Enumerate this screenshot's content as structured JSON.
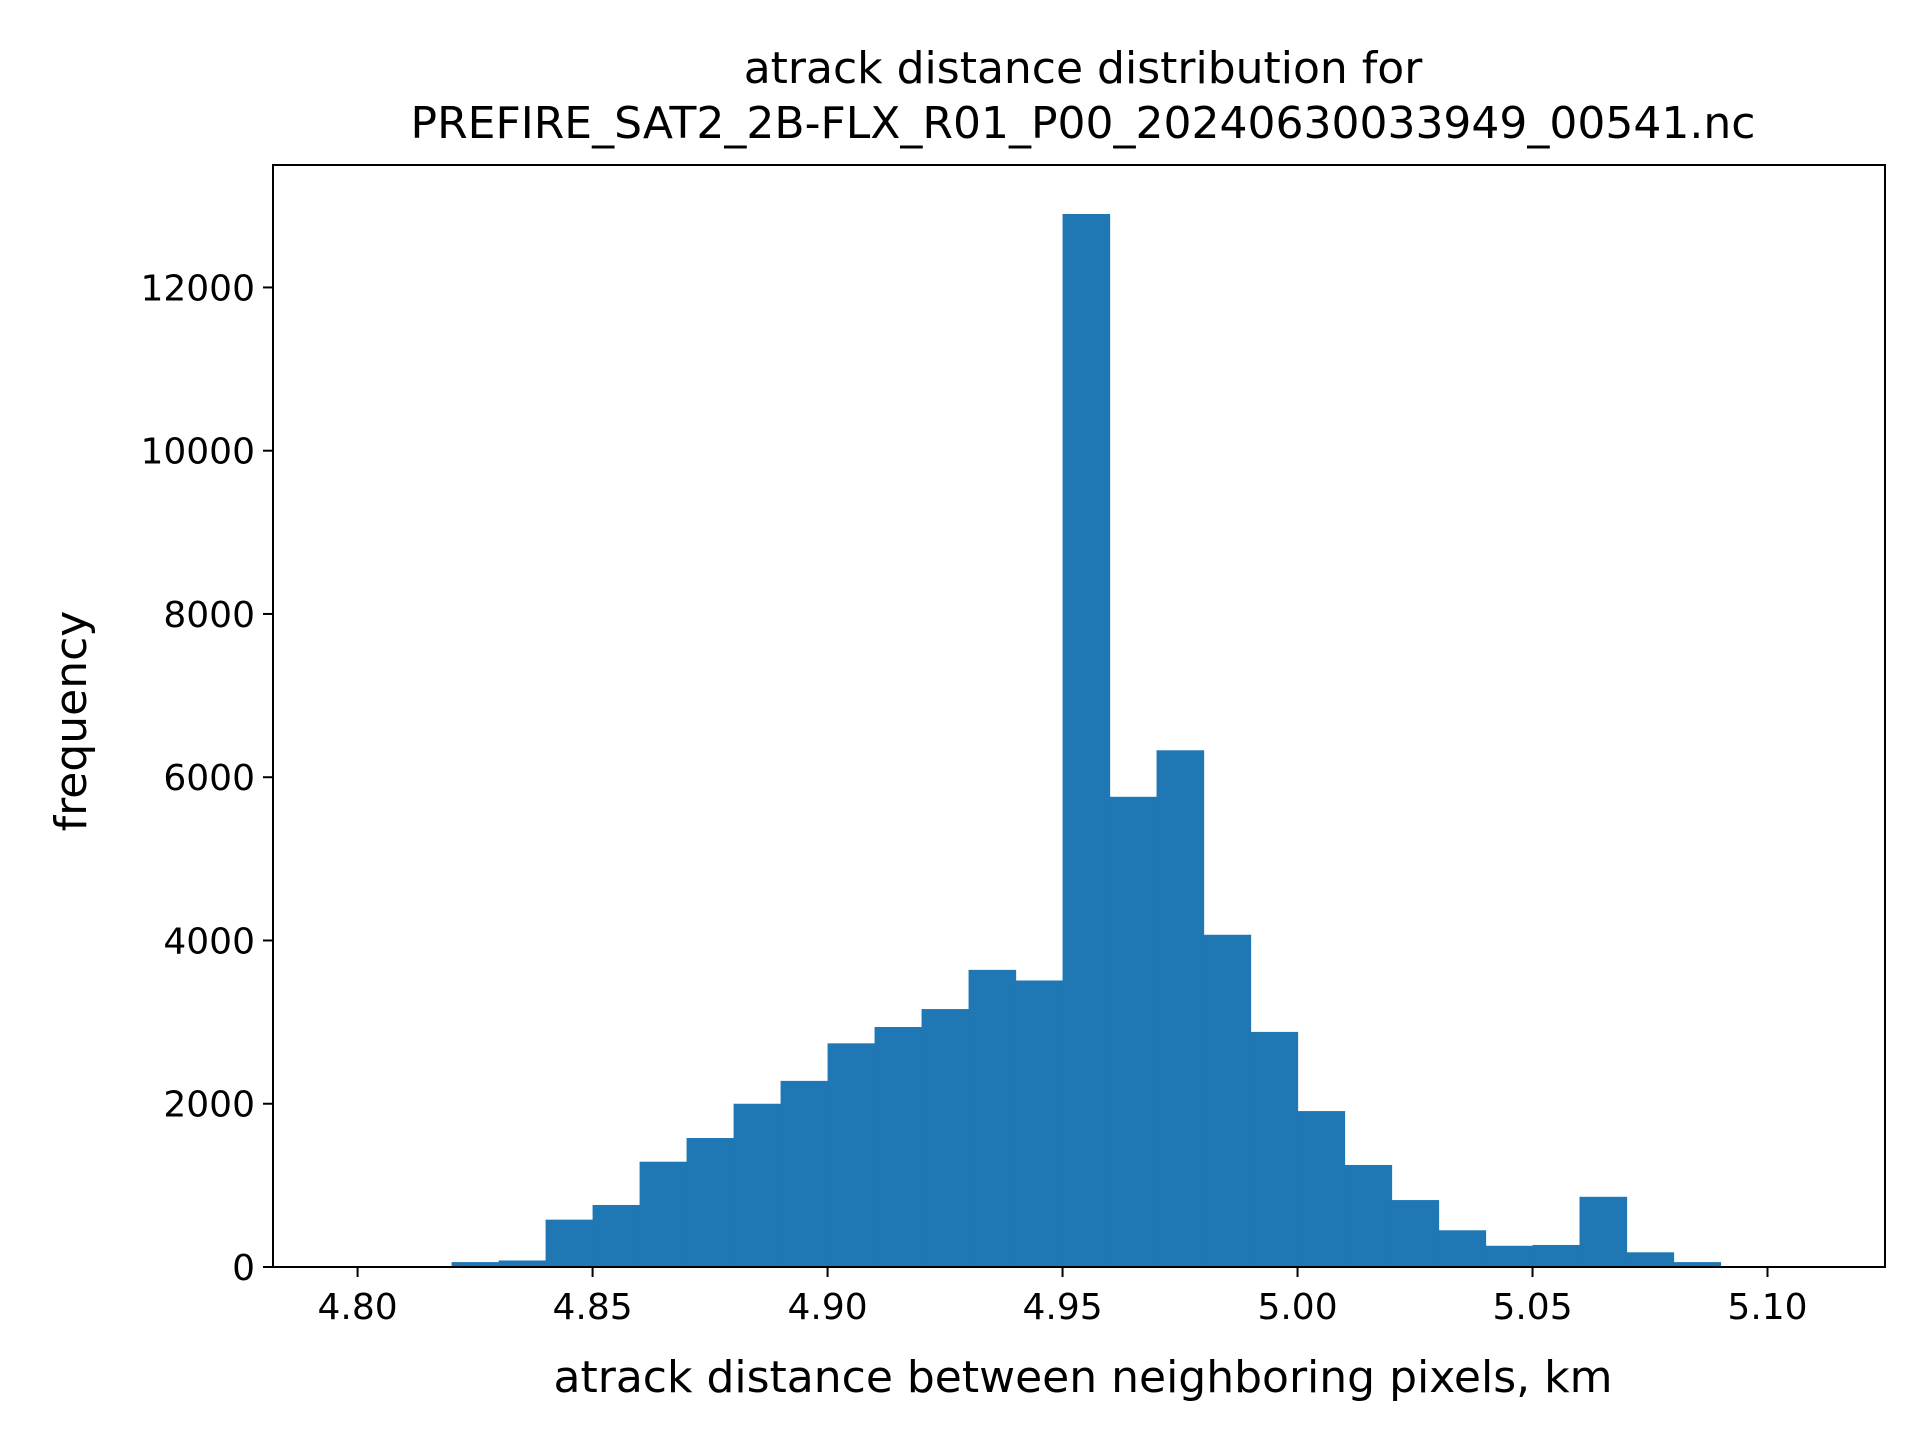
{
  "chart_data": {
    "type": "bar",
    "title_lines": [
      "atrack distance distribution for",
      "PREFIRE_SAT2_2B-FLX_R01_P00_20240630033949_00541.nc"
    ],
    "xlabel": "atrack distance between neighboring pixels, km",
    "ylabel": "frequency",
    "xlim": [
      4.782,
      5.125
    ],
    "ylim": [
      0,
      13500
    ],
    "xticks": [
      4.8,
      4.85,
      4.9,
      4.95,
      5.0,
      5.05,
      5.1
    ],
    "xtick_labels": [
      "4.80",
      "4.85",
      "4.90",
      "4.95",
      "5.00",
      "5.05",
      "5.10"
    ],
    "yticks": [
      0,
      2000,
      4000,
      6000,
      8000,
      10000,
      12000
    ],
    "ytick_labels": [
      "0",
      "2000",
      "4000",
      "6000",
      "8000",
      "10000",
      "12000"
    ],
    "bar_color": "#1f77b4",
    "bin_width": 0.01,
    "bins": [
      {
        "x0": 4.79,
        "value": 0
      },
      {
        "x0": 4.8,
        "value": 0
      },
      {
        "x0": 4.81,
        "value": 0
      },
      {
        "x0": 4.82,
        "value": 60
      },
      {
        "x0": 4.83,
        "value": 80
      },
      {
        "x0": 4.84,
        "value": 580
      },
      {
        "x0": 4.85,
        "value": 760
      },
      {
        "x0": 4.86,
        "value": 1290
      },
      {
        "x0": 4.87,
        "value": 1580
      },
      {
        "x0": 4.88,
        "value": 2000
      },
      {
        "x0": 4.89,
        "value": 2280
      },
      {
        "x0": 4.9,
        "value": 2740
      },
      {
        "x0": 4.91,
        "value": 2940
      },
      {
        "x0": 4.92,
        "value": 3160
      },
      {
        "x0": 4.93,
        "value": 3640
      },
      {
        "x0": 4.94,
        "value": 3510
      },
      {
        "x0": 4.95,
        "value": 12900
      },
      {
        "x0": 4.96,
        "value": 5760
      },
      {
        "x0": 4.97,
        "value": 6330
      },
      {
        "x0": 4.98,
        "value": 4070
      },
      {
        "x0": 4.99,
        "value": 2880
      },
      {
        "x0": 5.0,
        "value": 1910
      },
      {
        "x0": 5.01,
        "value": 1250
      },
      {
        "x0": 5.02,
        "value": 820
      },
      {
        "x0": 5.03,
        "value": 450
      },
      {
        "x0": 5.04,
        "value": 260
      },
      {
        "x0": 5.05,
        "value": 270
      },
      {
        "x0": 5.06,
        "value": 860
      },
      {
        "x0": 5.07,
        "value": 180
      },
      {
        "x0": 5.08,
        "value": 60
      },
      {
        "x0": 5.09,
        "value": 0
      },
      {
        "x0": 5.1,
        "value": 0
      }
    ]
  }
}
